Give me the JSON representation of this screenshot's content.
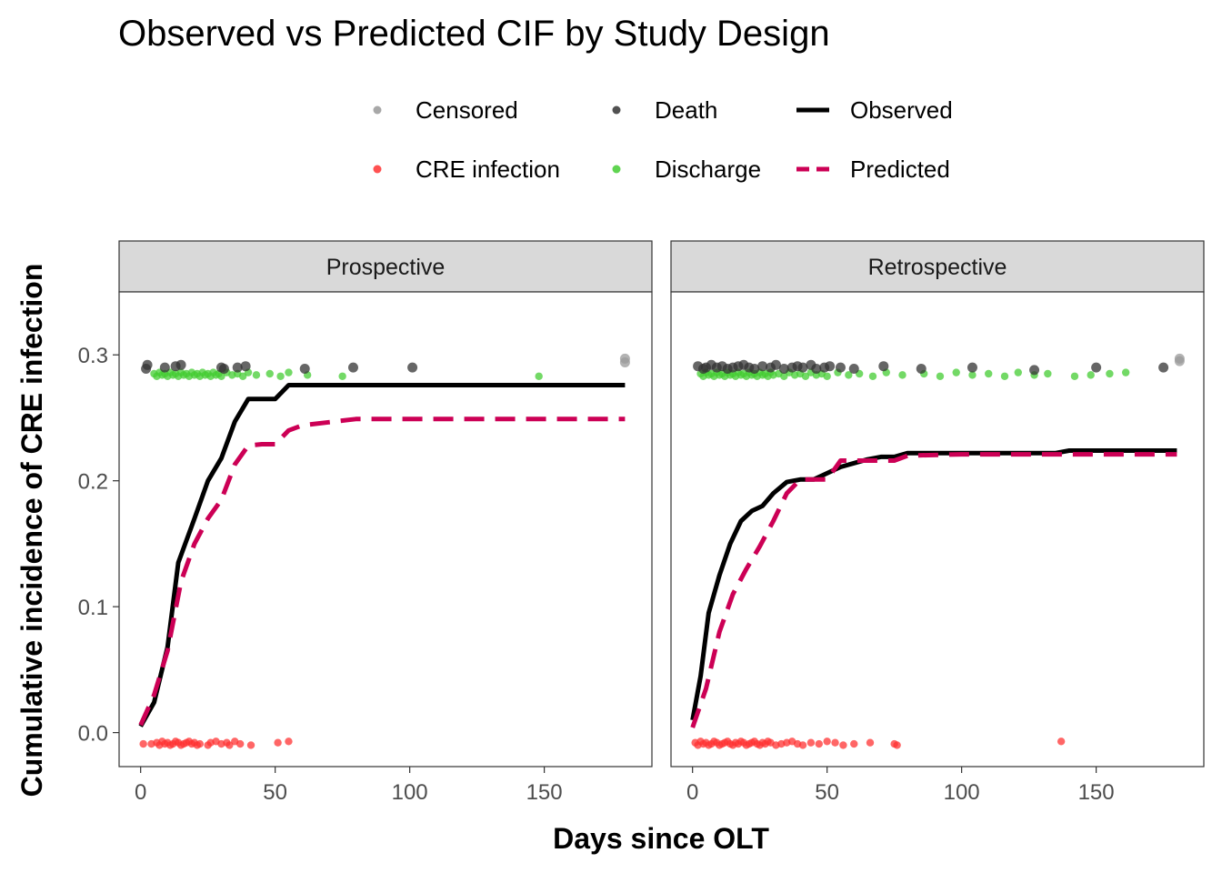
{
  "chart_data": {
    "type": "line",
    "title": "Observed vs Predicted CIF by Study Design",
    "xlabel": "Days since OLT",
    "ylabel": "Cumulative incidence of CRE infection",
    "xlim": [
      -8,
      190
    ],
    "ylim": [
      -0.027,
      0.35
    ],
    "x_ticks": [
      0,
      50,
      100,
      150
    ],
    "y_ticks": [
      0.0,
      0.1,
      0.2,
      0.3
    ],
    "x_tick_labels": [
      "0",
      "50",
      "100",
      "150"
    ],
    "y_tick_labels": [
      "0.0",
      "0.1",
      "0.2",
      "0.3"
    ],
    "grid": false,
    "legend": {
      "placement": "top",
      "entries": [
        {
          "label": "Censored",
          "kind": "point",
          "color": "#999999"
        },
        {
          "label": "CRE infection",
          "kind": "point",
          "color": "#ff3333"
        },
        {
          "label": "Death",
          "kind": "point",
          "color": "#333333"
        },
        {
          "label": "Discharge",
          "kind": "point",
          "color": "#44cc33"
        },
        {
          "label": "Observed",
          "kind": "solid-line",
          "color": "#000000"
        },
        {
          "label": "Predicted",
          "kind": "dashed-line",
          "color": "#cc0055"
        }
      ]
    },
    "panels": [
      {
        "label": "Prospective",
        "series": [
          {
            "name": "Observed",
            "style": "solid",
            "color": "#000000",
            "x": [
              0,
              5,
              10,
              14,
              20,
              25,
              30,
              35,
              40,
              45,
              50,
              55,
              60,
              80,
              100,
              150,
              180
            ],
            "y": [
              0.005,
              0.024,
              0.068,
              0.135,
              0.17,
              0.2,
              0.218,
              0.247,
              0.265,
              0.265,
              0.265,
              0.276,
              0.276,
              0.276,
              0.276,
              0.276,
              0.276
            ]
          },
          {
            "name": "Predicted",
            "style": "dashed",
            "color": "#cc0055",
            "x": [
              0,
              5,
              10,
              15,
              20,
              25,
              30,
              35,
              40,
              45,
              50,
              55,
              60,
              80,
              100,
              150,
              180
            ],
            "y": [
              0.006,
              0.03,
              0.065,
              0.12,
              0.15,
              0.17,
              0.185,
              0.213,
              0.228,
              0.229,
              0.229,
              0.24,
              0.244,
              0.249,
              0.249,
              0.249,
              0.249
            ]
          }
        ],
        "events": {
          "Censored": {
            "x": [
              180,
              180
            ],
            "y": [
              0.294,
              0.297
            ]
          },
          "Death": {
            "x": [
              2,
              2.5,
              9,
              13,
              15,
              30,
              31,
              36,
              39,
              61,
              79,
              101
            ],
            "y": [
              0.289,
              0.292,
              0.29,
              0.291,
              0.292,
              0.29,
              0.289,
              0.29,
              0.291,
              0.289,
              0.29,
              0.29
            ]
          },
          "Discharge": {
            "x": [
              5,
              6,
              7,
              8,
              9,
              10,
              11,
              12,
              13,
              14,
              15,
              16,
              17,
              18,
              19,
              20,
              21,
              22,
              23,
              24,
              25,
              26,
              27,
              28,
              29,
              30,
              32,
              34,
              36,
              38,
              40,
              43,
              48,
              52,
              55,
              62,
              75,
              148
            ],
            "y": [
              0.285,
              0.283,
              0.286,
              0.284,
              0.285,
              0.283,
              0.286,
              0.284,
              0.285,
              0.283,
              0.286,
              0.284,
              0.285,
              0.283,
              0.286,
              0.284,
              0.285,
              0.283,
              0.286,
              0.284,
              0.285,
              0.283,
              0.286,
              0.284,
              0.285,
              0.283,
              0.286,
              0.284,
              0.285,
              0.283,
              0.286,
              0.284,
              0.285,
              0.283,
              0.286,
              0.284,
              0.283,
              0.283
            ]
          },
          "CRE infection": {
            "x": [
              1,
              4,
              6,
              7,
              8,
              9,
              10,
              11,
              12,
              13,
              14,
              15,
              16,
              17,
              18,
              19,
              20,
              21,
              22,
              25,
              26,
              28,
              30,
              32,
              33,
              35,
              37,
              41,
              51,
              55
            ],
            "y": [
              -0.009,
              -0.009,
              -0.008,
              -0.01,
              -0.007,
              -0.009,
              -0.008,
              -0.01,
              -0.009,
              -0.007,
              -0.008,
              -0.01,
              -0.009,
              -0.008,
              -0.007,
              -0.009,
              -0.008,
              -0.01,
              -0.009,
              -0.01,
              -0.008,
              -0.007,
              -0.009,
              -0.008,
              -0.01,
              -0.007,
              -0.009,
              -0.01,
              -0.008,
              -0.007
            ]
          }
        }
      },
      {
        "label": "Retrospective",
        "series": [
          {
            "name": "Observed",
            "style": "solid",
            "color": "#000000",
            "x": [
              0,
              3,
              6,
              10,
              14,
              18,
              22,
              26,
              30,
              35,
              40,
              45,
              50,
              55,
              60,
              65,
              70,
              75,
              80,
              100,
              120,
              135,
              140,
              160,
              180
            ],
            "y": [
              0.01,
              0.045,
              0.095,
              0.125,
              0.15,
              0.168,
              0.176,
              0.18,
              0.19,
              0.199,
              0.201,
              0.201,
              0.206,
              0.211,
              0.214,
              0.217,
              0.219,
              0.219,
              0.222,
              0.222,
              0.222,
              0.222,
              0.224,
              0.224,
              0.224
            ]
          },
          {
            "name": "Predicted",
            "style": "dashed",
            "color": "#cc0055",
            "x": [
              0,
              5,
              10,
              15,
              20,
              25,
              30,
              35,
              40,
              45,
              50,
              55,
              60,
              75,
              80,
              100,
              120,
              150,
              180
            ],
            "y": [
              0.004,
              0.035,
              0.08,
              0.11,
              0.13,
              0.148,
              0.168,
              0.19,
              0.201,
              0.201,
              0.201,
              0.216,
              0.216,
              0.216,
              0.22,
              0.221,
              0.221,
              0.221,
              0.221
            ]
          }
        ],
        "events": {
          "Censored": {
            "x": [
              181,
              181
            ],
            "y": [
              0.295,
              0.297
            ]
          },
          "Death": {
            "x": [
              2,
              4,
              5,
              7,
              9,
              11,
              13,
              15,
              17,
              19,
              21,
              23,
              26,
              29,
              31,
              34,
              37,
              39,
              41,
              44,
              46,
              49,
              51,
              55,
              60,
              71,
              85,
              104,
              127,
              150,
              175
            ],
            "y": [
              0.291,
              0.289,
              0.29,
              0.292,
              0.29,
              0.291,
              0.289,
              0.29,
              0.291,
              0.292,
              0.29,
              0.289,
              0.291,
              0.29,
              0.292,
              0.289,
              0.29,
              0.291,
              0.29,
              0.292,
              0.289,
              0.29,
              0.291,
              0.29,
              0.289,
              0.291,
              0.289,
              0.29,
              0.288,
              0.29,
              0.29
            ]
          },
          "Discharge": {
            "x": [
              3,
              4,
              5,
              6,
              7,
              8,
              9,
              10,
              11,
              12,
              13,
              14,
              15,
              16,
              17,
              18,
              19,
              20,
              21,
              22,
              23,
              24,
              25,
              26,
              27,
              28,
              29,
              30,
              32,
              34,
              36,
              38,
              40,
              42,
              44,
              46,
              48,
              50,
              54,
              58,
              62,
              67,
              72,
              78,
              86,
              92,
              98,
              104,
              110,
              116,
              121,
              127,
              132,
              142,
              148,
              155,
              161
            ],
            "y": [
              0.285,
              0.283,
              0.286,
              0.284,
              0.285,
              0.283,
              0.286,
              0.284,
              0.285,
              0.283,
              0.286,
              0.284,
              0.285,
              0.283,
              0.286,
              0.284,
              0.285,
              0.283,
              0.286,
              0.284,
              0.285,
              0.283,
              0.286,
              0.284,
              0.285,
              0.283,
              0.286,
              0.284,
              0.285,
              0.283,
              0.286,
              0.284,
              0.285,
              0.283,
              0.286,
              0.284,
              0.285,
              0.283,
              0.286,
              0.284,
              0.285,
              0.283,
              0.286,
              0.284,
              0.285,
              0.283,
              0.286,
              0.284,
              0.285,
              0.283,
              0.286,
              0.284,
              0.285,
              0.283,
              0.284,
              0.285,
              0.286
            ]
          },
          "CRE infection": {
            "x": [
              1,
              2,
              3,
              4,
              5,
              6,
              7,
              8,
              9,
              10,
              11,
              12,
              13,
              14,
              15,
              16,
              17,
              18,
              19,
              20,
              21,
              22,
              23,
              24,
              25,
              26,
              27,
              28,
              29,
              31,
              33,
              35,
              37,
              39,
              41,
              44,
              47,
              50,
              53,
              56,
              60,
              66,
              75,
              76,
              137
            ],
            "y": [
              -0.008,
              -0.01,
              -0.007,
              -0.009,
              -0.008,
              -0.01,
              -0.009,
              -0.007,
              -0.008,
              -0.01,
              -0.009,
              -0.008,
              -0.007,
              -0.009,
              -0.01,
              -0.008,
              -0.009,
              -0.007,
              -0.008,
              -0.01,
              -0.009,
              -0.008,
              -0.007,
              -0.009,
              -0.01,
              -0.008,
              -0.009,
              -0.007,
              -0.008,
              -0.01,
              -0.009,
              -0.008,
              -0.007,
              -0.009,
              -0.01,
              -0.008,
              -0.009,
              -0.007,
              -0.008,
              -0.01,
              -0.009,
              -0.008,
              -0.009,
              -0.01,
              -0.007
            ]
          }
        }
      }
    ]
  }
}
